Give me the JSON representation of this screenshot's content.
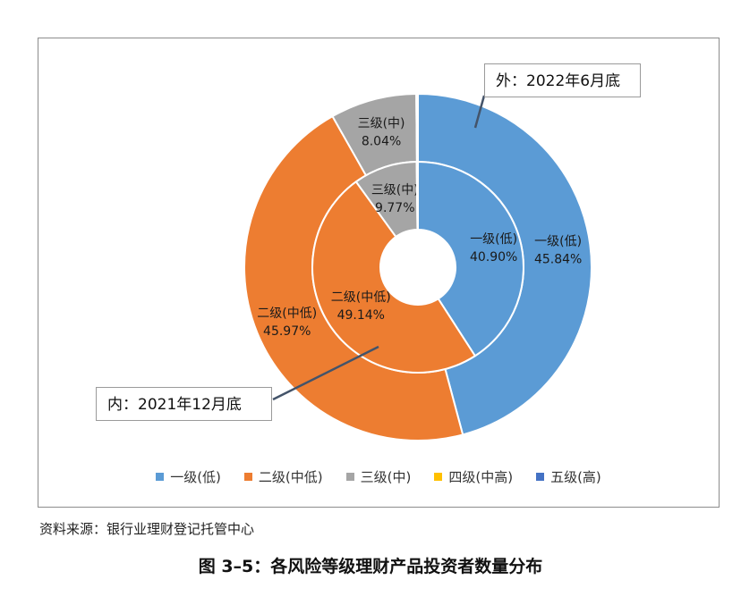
{
  "chart_data": {
    "type": "donut",
    "rings": [
      {
        "name": "外：2022年6月底",
        "values": [
          45.84,
          45.97,
          8.04,
          0.15,
          0.0
        ],
        "labels": [
          "一级(低)\n45.84%",
          "二级(中低)\n45.97%",
          "三级(中)\n8.04%",
          "",
          ""
        ]
      },
      {
        "name": "内：2021年12月底",
        "values": [
          40.9,
          49.14,
          9.77,
          0.19,
          0.0
        ],
        "labels": [
          "一级(低)\n40.90%",
          "二级(中低)\n49.14%",
          "三级(中)\n9.77%",
          "",
          ""
        ]
      }
    ],
    "categories": [
      "一级(低)",
      "二级(中低)",
      "三级(中)",
      "四级(中高)",
      "五级(高)"
    ],
    "colors": [
      "#5b9bd5",
      "#ed7d31",
      "#a5a5a5",
      "#ffc000",
      "#4472c4"
    ],
    "legend_position": "bottom"
  },
  "callouts": {
    "outer": "外：2022年6月底",
    "inner": "内：2021年12月底"
  },
  "source_note": "资料来源：银行业理财登记托管中心",
  "figure_caption": "图 3–5：各风险等级理财产品投资者数量分布"
}
